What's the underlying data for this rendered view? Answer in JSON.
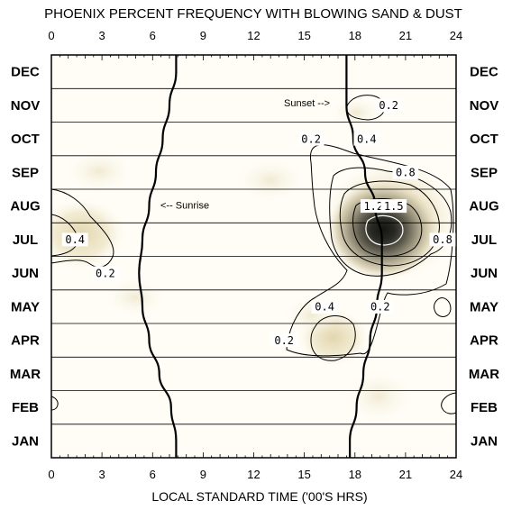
{
  "chart_data": {
    "type": "heatmap",
    "title": "PHOENIX PERCENT FREQUENCY WITH BLOWING SAND & DUST",
    "xlabel": "LOCAL STANDARD TIME ('00'S HRS)",
    "x_ticks": [
      "0",
      "3",
      "6",
      "9",
      "12",
      "15",
      "18",
      "21",
      "24"
    ],
    "xlim": [
      0,
      24
    ],
    "months_top_to_bottom": [
      "DEC",
      "NOV",
      "OCT",
      "SEP",
      "AUG",
      "JUL",
      "JUN",
      "MAY",
      "APR",
      "MAR",
      "FEB",
      "JAN"
    ],
    "grid": true,
    "contour_levels": [
      0.2,
      0.4,
      0.8,
      1.2,
      1.5
    ],
    "contour_labels": [
      {
        "text": "0.2",
        "hour": 20.0,
        "month": "NOV"
      },
      {
        "text": "0.2",
        "hour": 15.4,
        "month": "OCT"
      },
      {
        "text": "0.4",
        "hour": 18.7,
        "month": "OCT"
      },
      {
        "text": "0.8",
        "hour": 21.0,
        "month": "SEP"
      },
      {
        "text": "1.2",
        "hour": 19.1,
        "month": "AUG"
      },
      {
        "text": "1.5",
        "hour": 20.3,
        "month": "AUG"
      },
      {
        "text": "0.8",
        "hour": 23.2,
        "month": "JUL"
      },
      {
        "text": "0.4",
        "hour": 1.4,
        "month": "JUL"
      },
      {
        "text": "0.2",
        "hour": 3.2,
        "month": "JUN"
      },
      {
        "text": "0.4",
        "hour": 16.2,
        "month": "MAY"
      },
      {
        "text": "0.2",
        "hour": 19.5,
        "month": "MAY"
      },
      {
        "text": "0.2",
        "hour": 13.8,
        "month": "APR"
      }
    ],
    "annotations": [
      {
        "text": "Sunset -->",
        "near": "NOV"
      },
      {
        "text": "<-- Sunrise",
        "near": "AUG"
      }
    ],
    "sunrise_hour_by_month": {
      "JAN": 7.4,
      "FEB": 7.1,
      "MAR": 6.4,
      "APR": 5.8,
      "MAY": 5.4,
      "JUN": 5.2,
      "JUL": 5.4,
      "AUG": 5.8,
      "SEP": 6.2,
      "OCT": 6.6,
      "NOV": 7.0,
      "DEC": 7.4
    },
    "sunset_hour_by_month": {
      "JAN": 17.7,
      "FEB": 18.1,
      "MAR": 18.5,
      "APR": 18.9,
      "MAY": 19.3,
      "JUN": 19.6,
      "JUL": 19.6,
      "AUG": 19.2,
      "SEP": 18.6,
      "OCT": 17.9,
      "NOV": 17.5,
      "DEC": 17.5
    },
    "peak": {
      "value": 1.5,
      "hour": 19.8,
      "month": "JUL"
    },
    "colors": {
      "low": "#fdfaf0",
      "mid": "#e6dcb8",
      "high": "#1a1a16",
      "lines": "#000000"
    }
  }
}
